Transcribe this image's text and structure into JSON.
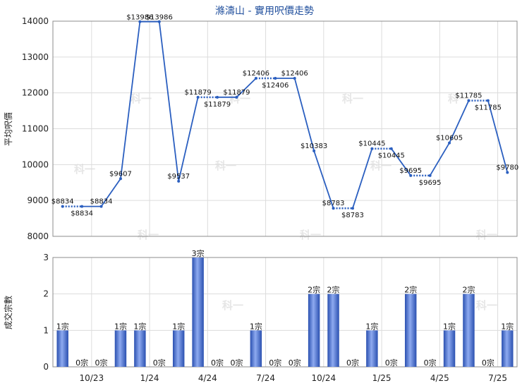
{
  "chart_data": [
    {
      "type": "line",
      "title": "滌濤山 - 實用呎價走勢",
      "ylabel": "平均呎價",
      "ylim": [
        8000,
        14000
      ],
      "yticks": [
        "8000",
        "9000",
        "10000",
        "11000",
        "12000",
        "13000",
        "14000"
      ],
      "grid": true,
      "series": [
        {
          "values": [
            8834,
            8834,
            8834,
            9607,
            13986,
            13986,
            9537,
            11879,
            11879,
            11879,
            12406,
            12406,
            12406,
            10383,
            8783,
            8783,
            10445,
            10445,
            9695,
            9695,
            10605,
            11785,
            11785,
            9780
          ],
          "labels": [
            "$8834",
            "$8834",
            "$8834",
            "$9607",
            "$13986",
            "$13986",
            "$9537",
            "$11879",
            "$11879",
            "$11879",
            "$12406",
            "$12406",
            "$12406",
            "$10383",
            "$8783",
            "$8783",
            "$10445",
            "$10445",
            "$9695",
            "$9695",
            "$10605",
            "$11785",
            "$11785",
            "$9780"
          ],
          "estimated": [
            false,
            true,
            false,
            false,
            false,
            false,
            false,
            false,
            true,
            false,
            false,
            true,
            false,
            false,
            false,
            true,
            false,
            true,
            false,
            true,
            false,
            false,
            true,
            false
          ]
        }
      ],
      "line_color": "#2b5fc0"
    },
    {
      "type": "bar",
      "ylabel": "成交宗數",
      "ylim": [
        0,
        3
      ],
      "yticks": [
        "0",
        "1",
        "2",
        "3"
      ],
      "grid": true,
      "values": [
        1,
        0,
        0,
        1,
        1,
        0,
        1,
        3,
        0,
        0,
        1,
        0,
        0,
        2,
        2,
        0,
        1,
        0,
        2,
        0,
        1,
        2,
        0,
        1
      ],
      "labels": [
        "1宗",
        "0宗",
        "0宗",
        "1宗",
        "1宗",
        "0宗",
        "1宗",
        "3宗",
        "0宗",
        "0宗",
        "1宗",
        "0宗",
        "0宗",
        "2宗",
        "2宗",
        "0宗",
        "1宗",
        "0宗",
        "2宗",
        "0宗",
        "1宗",
        "2宗",
        "0宗",
        "1宗"
      ],
      "xticks": [
        "10/23",
        "1/24",
        "4/24",
        "7/24",
        "10/24",
        "1/25",
        "4/25",
        "7/25"
      ],
      "bar_color": "#3a63c4"
    }
  ],
  "watermark": "科一"
}
